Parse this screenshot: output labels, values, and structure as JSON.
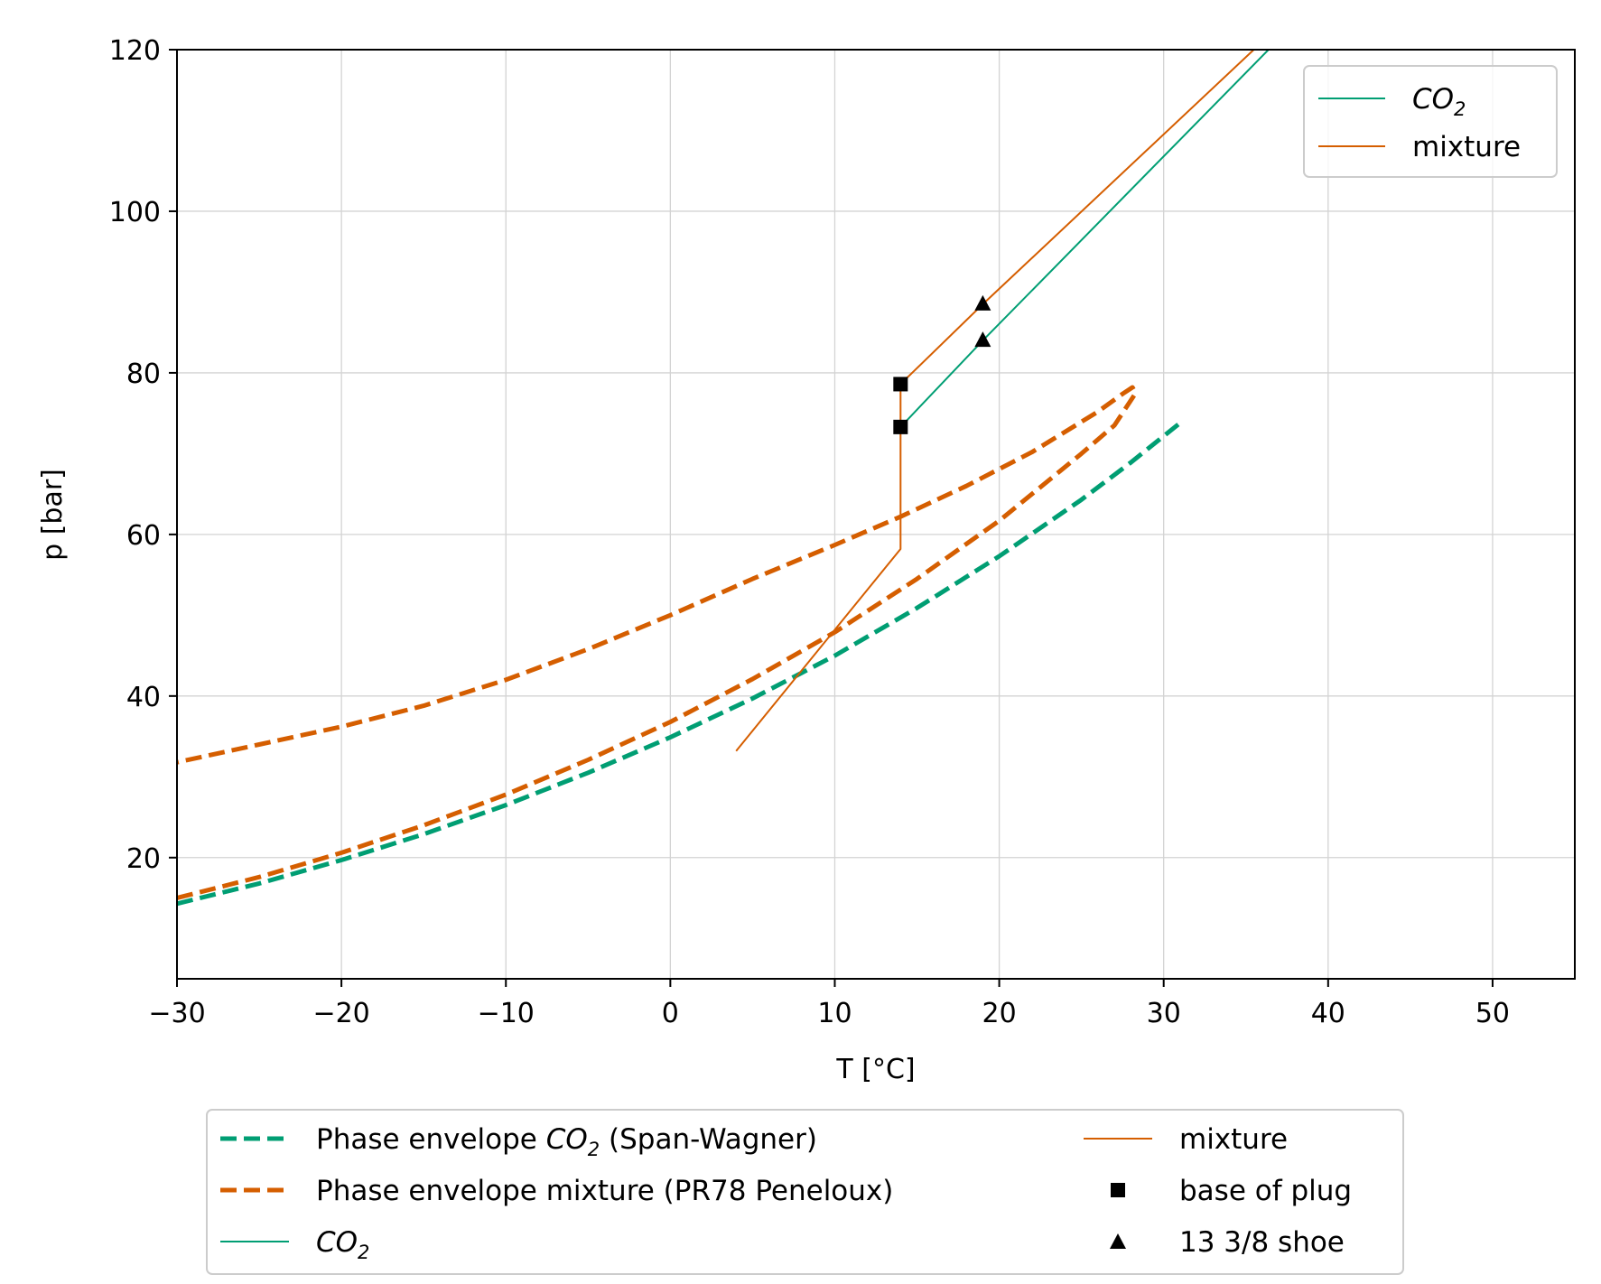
{
  "chart_data": {
    "type": "line",
    "xlabel": "T [°C]",
    "ylabel": "p [bar]",
    "xlim": [
      -30,
      55
    ],
    "ylim": [
      5,
      120
    ],
    "x_ticks": [
      -30,
      -20,
      -10,
      0,
      10,
      20,
      30,
      40,
      50
    ],
    "x_tick_labels": [
      "−30",
      "−20",
      "−10",
      "0",
      "10",
      "20",
      "30",
      "40",
      "50"
    ],
    "y_ticks": [
      20,
      40,
      60,
      80,
      100,
      120
    ],
    "y_tick_labels": [
      "20",
      "40",
      "60",
      "80",
      "100",
      "120"
    ],
    "grid": true,
    "colors": {
      "co2": "#009e73",
      "mixture": "#d55e00",
      "marker": "#000000"
    },
    "series": [
      {
        "name": "Phase envelope CO2 (Span-Wagner)",
        "label_main": "Phase envelope ",
        "label_italic": "CO",
        "label_sub": "2",
        "label_tail": " (Span-Wagner)",
        "style": "dashed",
        "color": "#009e73",
        "x": [
          -30,
          -25,
          -20,
          -15,
          -10,
          -5,
          0,
          5,
          10,
          15,
          20,
          25,
          28,
          31
        ],
        "y": [
          14.3,
          16.8,
          19.7,
          22.9,
          26.5,
          30.5,
          34.9,
          39.7,
          45.0,
          50.9,
          57.3,
          64.3,
          68.9,
          73.8
        ]
      },
      {
        "name": "Phase envelope mixture (PR78 Peneloux)",
        "label_main": "Phase envelope mixture (PR78 Peneloux)",
        "style": "dashed",
        "color": "#d55e00",
        "x": [
          -30,
          -25,
          -20,
          -15,
          -10,
          -5,
          0,
          5,
          10,
          15,
          20,
          25,
          27,
          28.3,
          28.1,
          27.5,
          26,
          22,
          18,
          14,
          10,
          5,
          0,
          -5,
          -10,
          -15,
          -20,
          -25,
          -30
        ],
        "y": [
          15.0,
          17.6,
          20.6,
          24.0,
          27.8,
          32.1,
          36.8,
          42.1,
          47.9,
          54.5,
          61.7,
          70.0,
          73.5,
          77.5,
          78.2,
          77.4,
          75.2,
          70.2,
          66.0,
          62.2,
          58.7,
          54.5,
          50.0,
          45.8,
          42.0,
          38.8,
          36.2,
          34.0,
          31.8
        ]
      },
      {
        "name": "CO2",
        "label_italic": "CO",
        "label_sub": "2",
        "style": "solid",
        "color": "#009e73",
        "x": [
          14,
          19,
          37
        ],
        "y": [
          73.3,
          84.0,
          121.3
        ]
      },
      {
        "name": "mixture",
        "label_main": "mixture",
        "style": "solid",
        "color": "#d55e00",
        "x": [
          4,
          14,
          14,
          14,
          19,
          36
        ],
        "y": [
          33.2,
          58.2,
          73.5,
          78.6,
          88.5,
          121.0
        ]
      },
      {
        "name": "base of plug",
        "label_main": "base of plug",
        "style": "marker-square",
        "color": "#000000",
        "x": [
          14,
          14
        ],
        "y": [
          73.3,
          78.6
        ]
      },
      {
        "name": "13 3/8 shoe",
        "label_main": "13 3/8 shoe",
        "style": "marker-triangle",
        "color": "#000000",
        "x": [
          19,
          19
        ],
        "y": [
          84.0,
          88.5
        ]
      }
    ],
    "legend_inner": [
      {
        "series": 2,
        "label_italic": "CO",
        "label_sub": "2"
      },
      {
        "series": 3,
        "label_main": "mixture"
      }
    ]
  }
}
